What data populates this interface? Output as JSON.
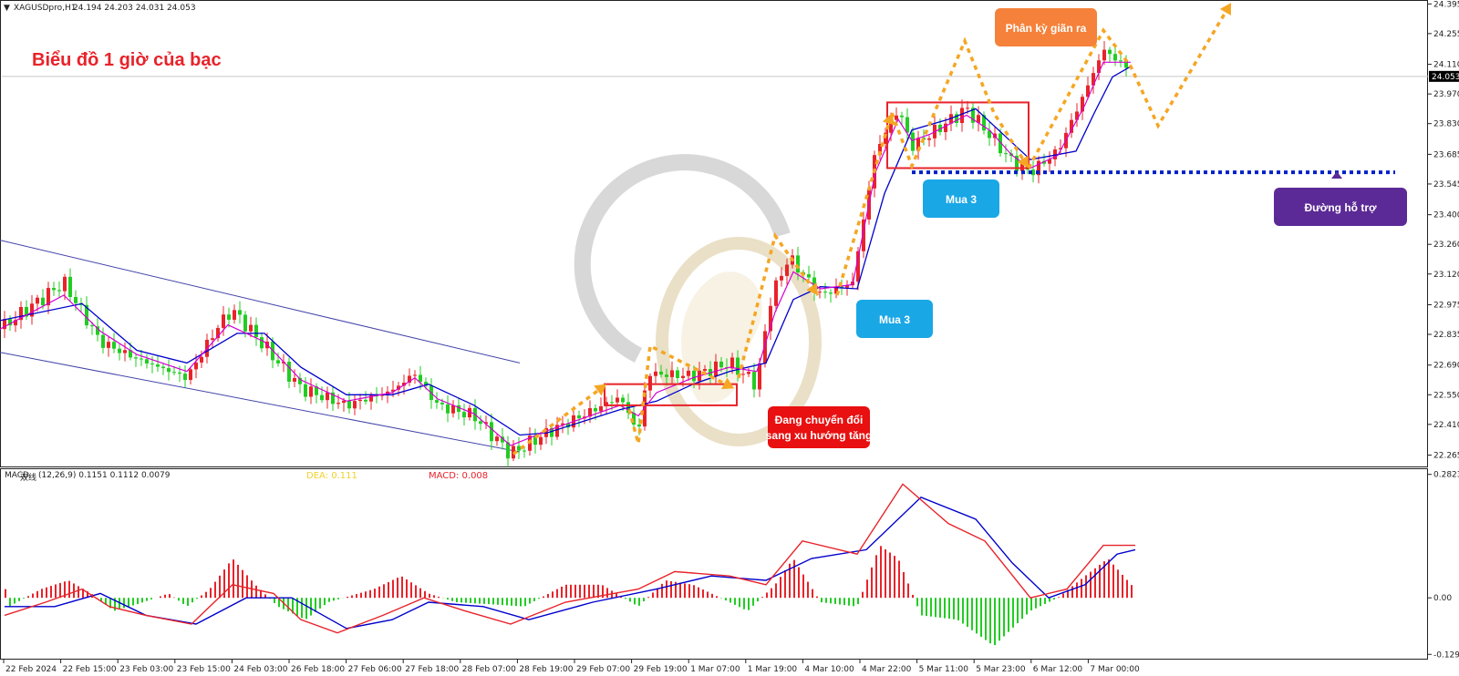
{
  "header": {
    "symbol": "XAGUSDpro,H1",
    "ohlc": "24.194 24.203 24.031 24.053"
  },
  "title": "Biểu đồ 1 giờ của bạc",
  "price_axis": {
    "ticks": [
      "24.395",
      "24.255",
      "24.110",
      "23.970",
      "23.830",
      "23.685",
      "23.545",
      "23.400",
      "23.260",
      "23.120",
      "22.975",
      "22.835",
      "22.690",
      "22.550",
      "22.410",
      "22.265"
    ],
    "current_price": "24.053",
    "ylim": [
      22.22,
      24.405
    ]
  },
  "macd_axis": {
    "ticks": [
      "0.2823",
      "0.00",
      "-0.1293"
    ],
    "ylim": [
      -0.135,
      0.29
    ]
  },
  "time_axis": {
    "labels": [
      "22 Feb 2024",
      "22 Feb 15:00",
      "23 Feb 03:00",
      "23 Feb 15:00",
      "24 Feb 03:00",
      "26 Feb 18:00",
      "27 Feb 06:00",
      "27 Feb 18:00",
      "28 Feb 07:00",
      "28 Feb 19:00",
      "29 Feb 07:00",
      "29 Feb 19:00",
      "1 Mar 07:00",
      "1 Mar 19:00",
      "4 Mar 10:00",
      "4 Mar 22:00",
      "5 Mar 11:00",
      "5 Mar 23:00",
      "6 Mar 12:00",
      "7 Mar 00:00"
    ]
  },
  "macd_header": {
    "name": "MACD",
    "overlap": "双线",
    "params": "(12,26,9) 0.1151 0.1112 0.0079",
    "dea": "DEA: 0.111",
    "macd": "MACD: 0.008"
  },
  "annotations": {
    "transition": [
      "Đang chuyển đổi",
      "sang xu hướng tăng"
    ],
    "buy1": "Mua 3",
    "buy2": "Mua 3",
    "divergence": "Phân kỳ giãn ra",
    "support": "Đường hỗ trợ"
  },
  "colors": {
    "bull": "#e8232a",
    "bear": "#22cc22",
    "fast_ma": "#d400d4",
    "slow_ma": "#0000cc",
    "channel": "#4444aa",
    "support": "#0020c8",
    "arrow": "#f5a623",
    "box": "#e8232a",
    "macd_line": "#e8232a",
    "signal_line": "#0000cc",
    "label_blue": "#1aa7e6",
    "label_red": "#e81010",
    "label_orange": "#f5813a",
    "label_purple": "#5b2a96"
  },
  "chart_data": [
    {
      "type": "candlestick",
      "title": "",
      "symbol": "XAGUSDpro,H1",
      "timeframe": "H1",
      "ylim": [
        22.22,
        24.405
      ],
      "price_path": [
        [
          0,
          22.86
        ],
        [
          70,
          23.08
        ],
        [
          110,
          22.8
        ],
        [
          150,
          22.72
        ],
        [
          205,
          22.63
        ],
        [
          240,
          22.88
        ],
        [
          255,
          22.95
        ],
        [
          290,
          22.78
        ],
        [
          330,
          22.58
        ],
        [
          380,
          22.5
        ],
        [
          430,
          22.57
        ],
        [
          455,
          22.65
        ],
        [
          480,
          22.5
        ],
        [
          520,
          22.45
        ],
        [
          560,
          22.27
        ],
        [
          600,
          22.37
        ],
        [
          680,
          22.54
        ],
        [
          700,
          22.37
        ],
        [
          710,
          22.65
        ],
        [
          760,
          22.64
        ],
        [
          800,
          22.7
        ],
        [
          830,
          22.6
        ],
        [
          845,
          23.0
        ],
        [
          865,
          23.2
        ],
        [
          900,
          23.02
        ],
        [
          935,
          23.08
        ],
        [
          960,
          23.7
        ],
        [
          985,
          23.9
        ],
        [
          1000,
          23.72
        ],
        [
          1020,
          23.78
        ],
        [
          1060,
          23.9
        ],
        [
          1085,
          23.78
        ],
        [
          1110,
          23.65
        ],
        [
          1130,
          23.6
        ],
        [
          1160,
          23.7
        ],
        [
          1190,
          23.98
        ],
        [
          1210,
          24.18
        ],
        [
          1240,
          24.08
        ]
      ],
      "fast_ma_path": [
        [
          0,
          22.86
        ],
        [
          70,
          23.02
        ],
        [
          110,
          22.85
        ],
        [
          150,
          22.74
        ],
        [
          205,
          22.66
        ],
        [
          250,
          22.88
        ],
        [
          290,
          22.8
        ],
        [
          330,
          22.62
        ],
        [
          380,
          22.52
        ],
        [
          430,
          22.56
        ],
        [
          455,
          22.63
        ],
        [
          480,
          22.53
        ],
        [
          520,
          22.46
        ],
        [
          560,
          22.31
        ],
        [
          600,
          22.38
        ],
        [
          680,
          22.5
        ],
        [
          700,
          22.45
        ],
        [
          720,
          22.56
        ],
        [
          760,
          22.63
        ],
        [
          800,
          22.68
        ],
        [
          830,
          22.66
        ],
        [
          850,
          22.94
        ],
        [
          870,
          23.13
        ],
        [
          900,
          23.05
        ],
        [
          935,
          23.07
        ],
        [
          960,
          23.6
        ],
        [
          985,
          23.85
        ],
        [
          1000,
          23.75
        ],
        [
          1020,
          23.78
        ],
        [
          1060,
          23.87
        ],
        [
          1085,
          23.8
        ],
        [
          1110,
          23.68
        ],
        [
          1130,
          23.62
        ],
        [
          1160,
          23.68
        ],
        [
          1190,
          23.92
        ],
        [
          1210,
          24.12
        ],
        [
          1240,
          24.12
        ]
      ],
      "slow_ma_path": [
        [
          0,
          22.9
        ],
        [
          90,
          22.98
        ],
        [
          150,
          22.76
        ],
        [
          205,
          22.7
        ],
        [
          260,
          22.84
        ],
        [
          290,
          22.84
        ],
        [
          330,
          22.68
        ],
        [
          380,
          22.55
        ],
        [
          430,
          22.55
        ],
        [
          470,
          22.6
        ],
        [
          520,
          22.5
        ],
        [
          570,
          22.36
        ],
        [
          600,
          22.37
        ],
        [
          680,
          22.48
        ],
        [
          720,
          22.52
        ],
        [
          760,
          22.6
        ],
        [
          800,
          22.66
        ],
        [
          840,
          22.7
        ],
        [
          870,
          23.0
        ],
        [
          900,
          23.06
        ],
        [
          940,
          23.05
        ],
        [
          970,
          23.5
        ],
        [
          1000,
          23.8
        ],
        [
          1040,
          23.85
        ],
        [
          1070,
          23.9
        ],
        [
          1100,
          23.78
        ],
        [
          1130,
          23.66
        ],
        [
          1180,
          23.7
        ],
        [
          1200,
          23.88
        ],
        [
          1220,
          24.05
        ],
        [
          1240,
          24.1
        ]
      ],
      "channel": [
        {
          "x": [
            0,
            570
          ],
          "y": [
            23.28,
            22.7
          ]
        },
        {
          "x": [
            0,
            570
          ],
          "y": [
            22.75,
            22.28
          ]
        }
      ],
      "support_level": 23.6,
      "support_x": [
        1000,
        1530
      ],
      "boxes": [
        {
          "x": [
            663,
            808
          ],
          "y": [
            22.6,
            22.5
          ]
        },
        {
          "x": [
            973,
            1128
          ],
          "y": [
            23.93,
            23.62
          ]
        }
      ],
      "arrow_paths": [
        [
          [
            563,
            22.27
          ],
          [
            665,
            22.6
          ]
        ],
        [
          [
            690,
            22.48
          ],
          [
            700,
            22.32
          ],
          [
            713,
            22.78
          ],
          [
            805,
            22.58
          ]
        ],
        [
          [
            810,
            22.63
          ],
          [
            850,
            23.3
          ],
          [
            897,
            23.02
          ]
        ],
        [
          [
            918,
            23.02
          ],
          [
            978,
            23.88
          ]
        ],
        [
          [
            978,
            23.88
          ],
          [
            1000,
            23.63
          ],
          [
            1058,
            24.22
          ],
          [
            1090,
            23.88
          ],
          [
            1128,
            23.62
          ]
        ],
        [
          [
            1128,
            23.62
          ],
          [
            1210,
            24.27
          ],
          [
            1240,
            24.1
          ],
          [
            1270,
            23.82
          ],
          [
            1350,
            24.4
          ]
        ]
      ]
    },
    {
      "type": "macd",
      "params": "(12,26,9)",
      "macd": 0.1151,
      "signal": 0.1112,
      "histogram": 0.0079,
      "ylim": [
        -0.135,
        0.29
      ],
      "macd_path": [
        [
          5,
          -0.04
        ],
        [
          50,
          -0.01
        ],
        [
          90,
          0.02
        ],
        [
          120,
          -0.02
        ],
        [
          160,
          -0.04
        ],
        [
          210,
          -0.06
        ],
        [
          255,
          0.03
        ],
        [
          300,
          0.01
        ],
        [
          330,
          -0.05
        ],
        [
          370,
          -0.08
        ],
        [
          420,
          -0.04
        ],
        [
          465,
          0.0
        ],
        [
          510,
          -0.03
        ],
        [
          560,
          -0.06
        ],
        [
          620,
          -0.01
        ],
        [
          700,
          0.02
        ],
        [
          740,
          0.06
        ],
        [
          800,
          0.05
        ],
        [
          840,
          0.03
        ],
        [
          880,
          0.13
        ],
        [
          940,
          0.1
        ],
        [
          990,
          0.26
        ],
        [
          1040,
          0.17
        ],
        [
          1080,
          0.13
        ],
        [
          1130,
          0.0
        ],
        [
          1170,
          0.02
        ],
        [
          1210,
          0.12
        ],
        [
          1245,
          0.12
        ]
      ],
      "signal_path": [
        [
          5,
          -0.02
        ],
        [
          60,
          -0.02
        ],
        [
          110,
          0.01
        ],
        [
          160,
          -0.04
        ],
        [
          215,
          -0.06
        ],
        [
          270,
          0.0
        ],
        [
          320,
          0.0
        ],
        [
          380,
          -0.07
        ],
        [
          430,
          -0.05
        ],
        [
          470,
          -0.01
        ],
        [
          530,
          -0.02
        ],
        [
          580,
          -0.05
        ],
        [
          650,
          -0.01
        ],
        [
          720,
          0.02
        ],
        [
          780,
          0.05
        ],
        [
          840,
          0.04
        ],
        [
          890,
          0.09
        ],
        [
          950,
          0.11
        ],
        [
          1010,
          0.23
        ],
        [
          1070,
          0.18
        ],
        [
          1110,
          0.08
        ],
        [
          1150,
          0.0
        ],
        [
          1190,
          0.03
        ],
        [
          1225,
          0.1
        ],
        [
          1245,
          0.11
        ]
      ],
      "histogram_bars": [
        [
          10,
          -0.02
        ],
        [
          45,
          0.02
        ],
        [
          75,
          0.04
        ],
        [
          100,
          0.01
        ],
        [
          125,
          -0.03
        ],
        [
          150,
          -0.015
        ],
        [
          185,
          0.01
        ],
        [
          205,
          -0.02
        ],
        [
          230,
          0.02
        ],
        [
          255,
          0.09
        ],
        [
          280,
          0.03
        ],
        [
          305,
          -0.02
        ],
        [
          335,
          -0.05
        ],
        [
          360,
          -0.01
        ],
        [
          410,
          0.02
        ],
        [
          440,
          0.05
        ],
        [
          470,
          0.01
        ],
        [
          500,
          -0.01
        ],
        [
          540,
          -0.015
        ],
        [
          575,
          -0.02
        ],
        [
          620,
          0.03
        ],
        [
          660,
          0.03
        ],
        [
          700,
          -0.02
        ],
        [
          730,
          0.04
        ],
        [
          760,
          0.03
        ],
        [
          790,
          0.0
        ],
        [
          820,
          -0.03
        ],
        [
          850,
          0.03
        ],
        [
          870,
          0.09
        ],
        [
          900,
          -0.01
        ],
        [
          940,
          -0.02
        ],
        [
          965,
          0.12
        ],
        [
          985,
          0.09
        ],
        [
          1010,
          -0.04
        ],
        [
          1050,
          -0.05
        ],
        [
          1090,
          -0.11
        ],
        [
          1130,
          -0.03
        ],
        [
          1160,
          0.0
        ],
        [
          1190,
          0.05
        ],
        [
          1215,
          0.09
        ],
        [
          1245,
          0.02
        ]
      ]
    }
  ]
}
